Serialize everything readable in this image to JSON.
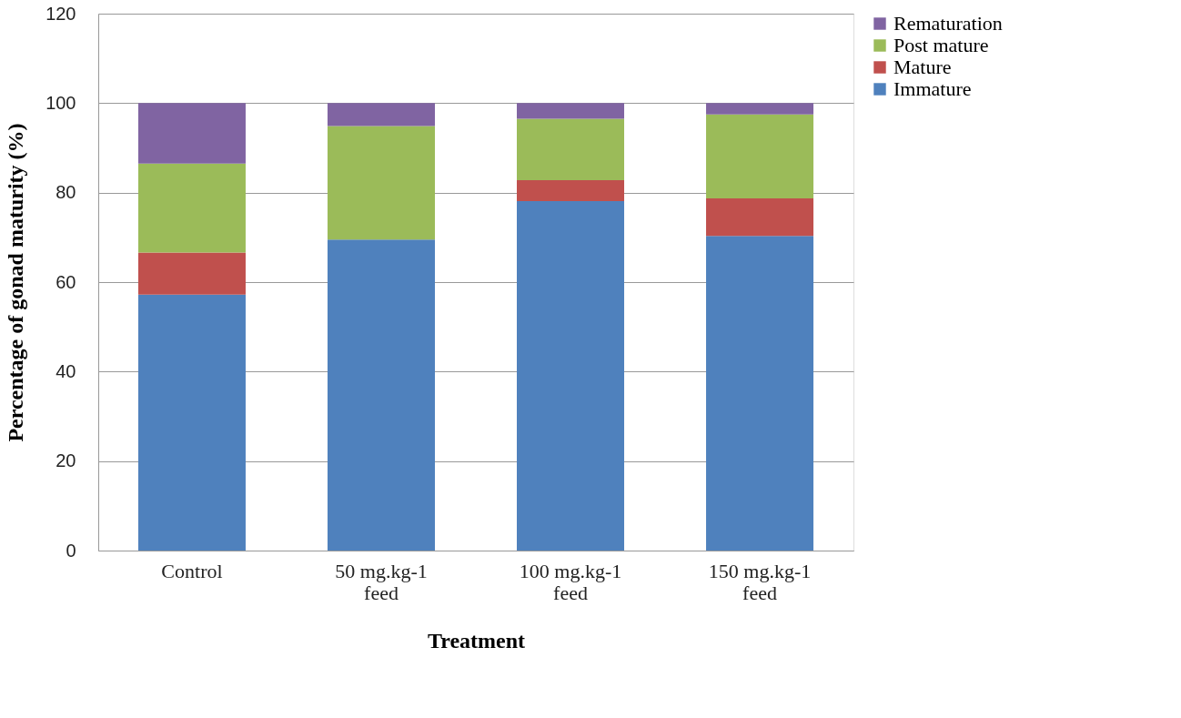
{
  "chart_data": {
    "type": "bar",
    "stacked": true,
    "categories": [
      "Control",
      "50 mg.kg-1 feed",
      "100 mg.kg-1 feed",
      "150 mg.kg-1 feed"
    ],
    "series": [
      {
        "name": "Immature",
        "color": "#4f81bd",
        "values": [
          57.2,
          69.5,
          78.1,
          70.3
        ]
      },
      {
        "name": "Mature",
        "color": "#c0504d",
        "values": [
          9.4,
          0,
          4.7,
          8.4
        ]
      },
      {
        "name": "Post mature",
        "color": "#9bbb59",
        "values": [
          19.9,
          25.4,
          13.7,
          18.8
        ]
      },
      {
        "name": "Rematuration",
        "color": "#8064a2",
        "values": [
          13.5,
          5.1,
          3.5,
          2.5
        ]
      }
    ],
    "xlabel": "Treatment",
    "ylabel": "Percentage of gonad maturity  (%)",
    "ylim": [
      0,
      120
    ],
    "yticks": [
      0,
      20,
      40,
      60,
      80,
      100,
      120
    ],
    "grid": "y",
    "legend": "right"
  }
}
